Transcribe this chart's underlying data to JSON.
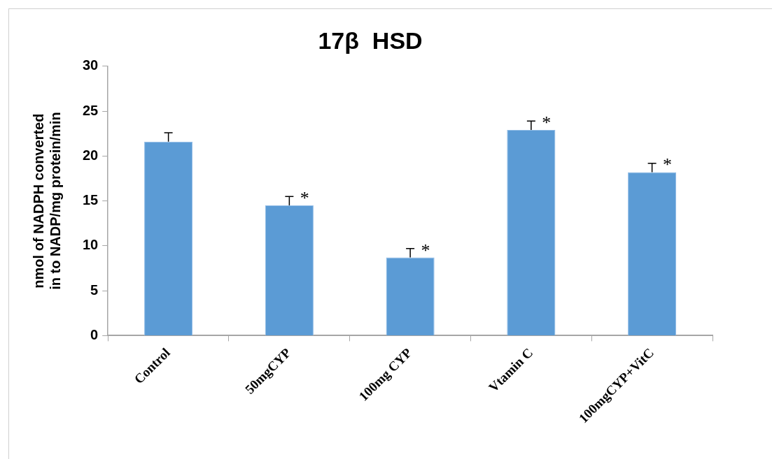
{
  "chart_data": {
    "type": "bar",
    "title": "17β  HSD",
    "ylabel": "nmol of NADPH converted\nin to NADP/mg protein/min",
    "categories": [
      "Control",
      "50mgCYP",
      "100mg CYP",
      "Vtamin C",
      "100mgCYP+VitC"
    ],
    "values": [
      21.6,
      14.5,
      8.7,
      22.9,
      18.2
    ],
    "errors": [
      [
        21.6,
        22.6
      ],
      [
        14.5,
        15.5
      ],
      [
        8.7,
        9.7
      ],
      [
        22.9,
        23.9
      ],
      [
        18.2,
        19.2
      ]
    ],
    "color": "#5b9bd5",
    "ylim": [
      0,
      30
    ],
    "yticks": [
      0,
      5,
      10,
      15,
      20,
      25,
      30
    ],
    "grid": false,
    "legend": false,
    "annotations": [
      {
        "text": "*",
        "x": "50mgCYP",
        "y": 15.5
      },
      {
        "text": "*",
        "x": "100mg CYP",
        "y": 9.7
      },
      {
        "text": "*",
        "x": "Vtamin C",
        "y": 23.9
      },
      {
        "text": "*",
        "x": "100mgCYP+VitC",
        "y": 19.2
      }
    ]
  }
}
